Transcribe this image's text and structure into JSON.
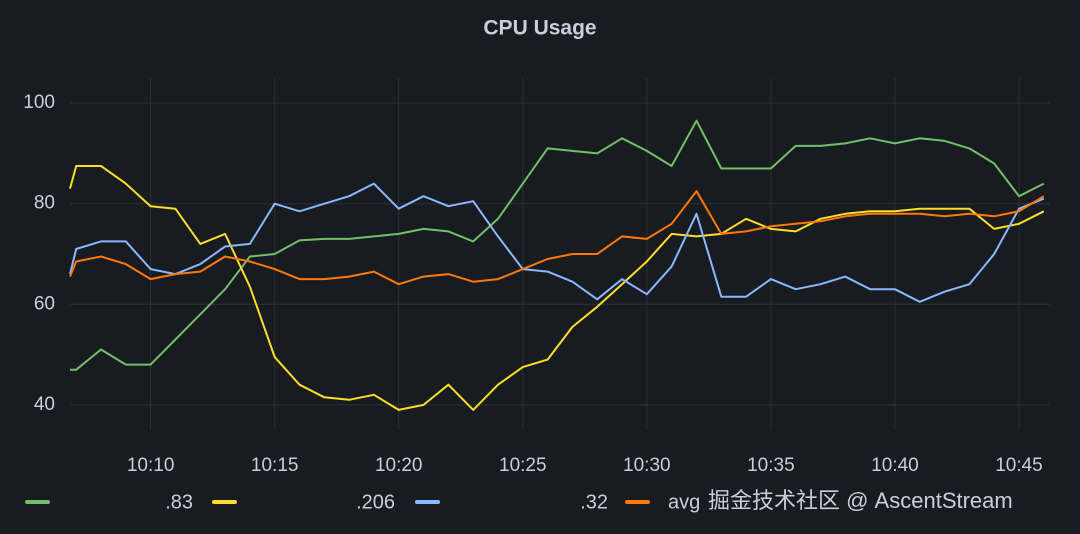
{
  "chart_data": {
    "type": "line",
    "title": "CPU Usage",
    "watermark": "掘金技术社区 @ AscentStream",
    "x": [
      6.75,
      7,
      8,
      9,
      10,
      11,
      12,
      13,
      14,
      15,
      16,
      17,
      18,
      19,
      20,
      21,
      22,
      23,
      24,
      25,
      26,
      27,
      28,
      29,
      30,
      31,
      32,
      33,
      34,
      35,
      36,
      37,
      38,
      39,
      40,
      41,
      42,
      43,
      44,
      45,
      46
    ],
    "xlim": [
      6.75,
      46.25
    ],
    "xticks": [
      {
        "value": 10,
        "label": "10:10"
      },
      {
        "value": 15,
        "label": "10:15"
      },
      {
        "value": 20,
        "label": "10:20"
      },
      {
        "value": 25,
        "label": "10:25"
      },
      {
        "value": 30,
        "label": "10:30"
      },
      {
        "value": 35,
        "label": "10:35"
      },
      {
        "value": 40,
        "label": "10:40"
      },
      {
        "value": 45,
        "label": "10:45"
      }
    ],
    "ylim": [
      35,
      105
    ],
    "yticks": [
      40,
      60,
      80,
      100
    ],
    "grid": true,
    "legend": "bottom",
    "series": [
      {
        "name": ".83",
        "color": "#73bf69",
        "values": [
          47,
          47,
          51,
          48,
          48,
          53,
          58,
          63,
          69.5,
          70,
          72.7,
          73,
          73,
          73.5,
          74,
          75,
          74.5,
          72.5,
          77,
          84,
          91,
          90.5,
          90,
          93,
          90.5,
          87.5,
          96.5,
          87,
          87,
          87,
          91.5,
          91.5,
          92,
          93,
          92,
          93,
          92.5,
          91,
          88,
          81.5,
          84
        ]
      },
      {
        "name": ".206",
        "color": "#fade2a",
        "values": [
          83,
          87.5,
          87.5,
          84,
          79.5,
          79,
          72,
          74,
          63.5,
          49.5,
          44,
          41.5,
          41,
          42,
          39,
          40,
          44,
          39,
          44,
          47.5,
          49,
          55.5,
          59.5,
          64,
          68.5,
          74,
          73.5,
          74,
          77,
          75,
          74.5,
          77,
          78,
          78.5,
          78.5,
          79,
          79,
          79,
          75,
          76,
          78.5
        ]
      },
      {
        "name": ".32",
        "color": "#8ab8ff",
        "values": [
          66,
          71,
          72.5,
          72.5,
          67,
          66,
          68,
          71.5,
          72,
          80,
          78.5,
          80,
          81.5,
          84,
          79,
          81.5,
          79.5,
          80.5,
          73.5,
          67,
          66.5,
          64.5,
          61,
          65,
          62,
          67.5,
          78,
          61.5,
          61.5,
          65,
          63,
          64,
          65.5,
          63,
          63,
          60.5,
          62.5,
          64,
          70,
          79,
          81
        ]
      },
      {
        "name": "avg",
        "color": "#ff780a",
        "values": [
          65.5,
          68.5,
          69.5,
          68,
          65,
          66,
          66.5,
          69.5,
          68.5,
          67,
          65,
          65,
          65.5,
          66.5,
          64,
          65.5,
          66,
          64.5,
          65,
          67,
          69,
          70,
          70,
          73.5,
          73,
          76,
          82.5,
          74,
          74.5,
          75.5,
          76,
          76.5,
          77.5,
          78,
          78,
          78,
          77.5,
          78,
          77.5,
          78.5,
          81.5
        ]
      }
    ]
  }
}
